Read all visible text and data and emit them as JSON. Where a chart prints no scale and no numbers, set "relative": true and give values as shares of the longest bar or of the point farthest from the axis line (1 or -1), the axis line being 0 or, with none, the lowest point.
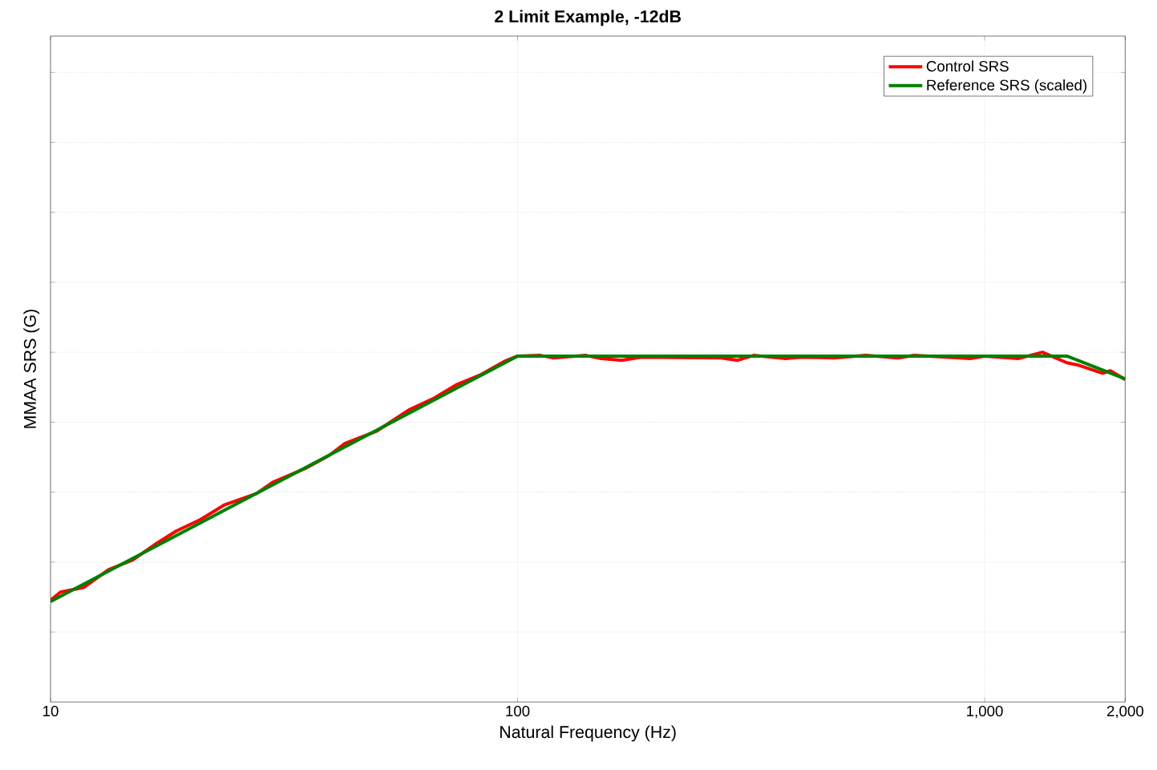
{
  "chart_data": {
    "type": "line",
    "title": "2 Limit Example, -12dB",
    "xlabel": "Natural Frequency (Hz)",
    "ylabel": "MMAA SRS (G)",
    "relative": true,
    "log": "x",
    "grid": true,
    "legend": "top right",
    "tick_labels": "x",
    "line_style": "solid",
    "marker": "none",
    "xlim": [
      10,
      2000
    ],
    "xticks": [
      10,
      100,
      {
        "value": 1000,
        "label": "1,000"
      },
      {
        "value": 2000,
        "label": "2,000"
      }
    ],
    "series": [
      {
        "name": "Control SRS",
        "color": "#ff0000",
        "x": [
          10,
          10.5,
          11.8,
          13.3,
          15.0,
          16.9,
          18.6,
          20.9,
          23.6,
          27.6,
          29.9,
          35.0,
          39.4,
          42.7,
          50.0,
          58.5,
          65.9,
          74.2,
          83.5,
          94.1,
          100,
          112,
          119,
          140,
          151,
          167,
          184,
          224,
          273,
          296,
          320,
          375,
          406,
          476,
          557,
          653,
          706,
          827,
          931,
          1000,
          1180,
          1330,
          1500,
          1590,
          1790,
          1860,
          2000
        ],
        "values": [
          0.291,
          0.314,
          0.328,
          0.378,
          0.406,
          0.454,
          0.489,
          0.521,
          0.564,
          0.596,
          0.628,
          0.667,
          0.704,
          0.739,
          0.775,
          0.835,
          0.867,
          0.908,
          0.936,
          0.975,
          0.989,
          0.991,
          0.984,
          0.991,
          0.982,
          0.977,
          0.986,
          null,
          0.984,
          0.977,
          0.991,
          0.982,
          0.986,
          0.984,
          0.991,
          0.984,
          0.991,
          0.986,
          0.982,
          0.989,
          0.982,
          1,
          0.97,
          0.963,
          0.94,
          0.947,
          0.922
        ]
      },
      {
        "name": "Reference SRS (scaled)",
        "color": "#008000",
        "x": [
          10,
          100,
          1500,
          2000
        ],
        "values": [
          0.287,
          0.989,
          0.989,
          0.924
        ]
      }
    ]
  }
}
